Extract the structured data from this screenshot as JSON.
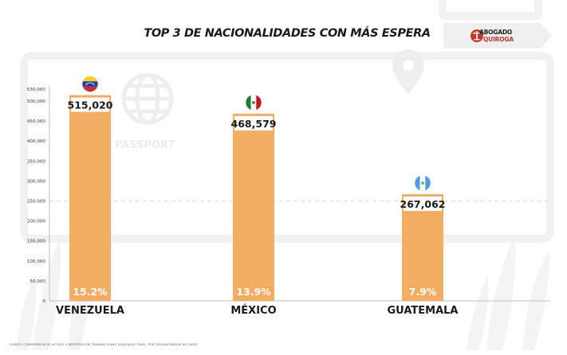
{
  "chart_data": {
    "type": "bar",
    "title": "TOP 3 DE NACIONALIDADES CON MÁS ESPERA",
    "categories": [
      "VENEZUELA",
      "MÉXICO",
      "GUATEMALA"
    ],
    "values": [
      515020,
      468579,
      267062
    ],
    "value_labels": [
      "515,020",
      "468,579",
      "267,062"
    ],
    "percent_labels": [
      "15.2%",
      "13.9%",
      "7.9%"
    ],
    "flags": [
      "venezuela-flag-icon",
      "mexico-flag-icon",
      "guatemala-flag-icon"
    ],
    "ylim": [
      0,
      530000
    ],
    "yticks": [
      0,
      50000,
      100000,
      150000,
      200000,
      250000,
      300000,
      350000,
      400000,
      450000,
      500000,
      530000
    ],
    "ytick_labels": [
      "0",
      "50,000",
      "100,000",
      "150,000",
      "200,000",
      "250,000",
      "300,000",
      "350,000",
      "400,000",
      "450,000",
      "500,000",
      "530,000"
    ],
    "grid": true,
    "bar_color": "#f3ad63",
    "value_label_bg": "#ffffff"
  },
  "logo": {
    "line1": "ABOGADO",
    "line2": "QUIROGA",
    "accent_color": "#c0392b"
  },
  "source_note": "FUENTE: COMPRENSIÓN DE ACCESO A REGISTROS DE TRANSACCIONES JUDICIALES (TRAC), POR CIRCUNSTANCIAS DE CASOS"
}
